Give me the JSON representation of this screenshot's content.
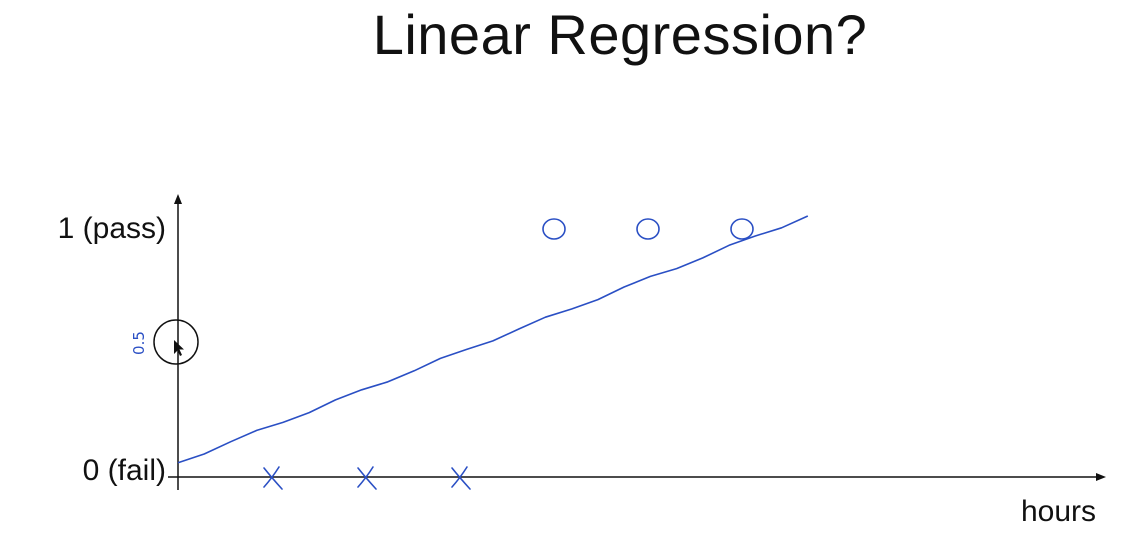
{
  "title": "Linear Regression?",
  "chart_data": {
    "type": "scatter",
    "title": "Linear Regression?",
    "xlabel": "hours",
    "ylabel": "",
    "y_tick_labels": [
      {
        "value": 1,
        "label": "1 (pass)"
      },
      {
        "value": 0,
        "label": "0 (fail)"
      }
    ],
    "series": [
      {
        "marker": "x",
        "points": [
          {
            "x": 1,
            "y": 0
          },
          {
            "x": 2,
            "y": 0
          },
          {
            "x": 3,
            "y": 0
          }
        ]
      },
      {
        "marker": "o",
        "points": [
          {
            "x": 4,
            "y": 1
          },
          {
            "x": 5,
            "y": 1
          },
          {
            "x": 6,
            "y": 1
          }
        ]
      }
    ],
    "fit_line": {
      "x": [
        0,
        6.7
      ],
      "y": [
        0.03,
        1.05
      ]
    },
    "annotation": {
      "text": "0.5",
      "y": 0.5,
      "highlighted": true
    },
    "colors": {
      "ink": "#111111",
      "pen": "#2a4fc4"
    },
    "grid": false,
    "legend": "none"
  }
}
